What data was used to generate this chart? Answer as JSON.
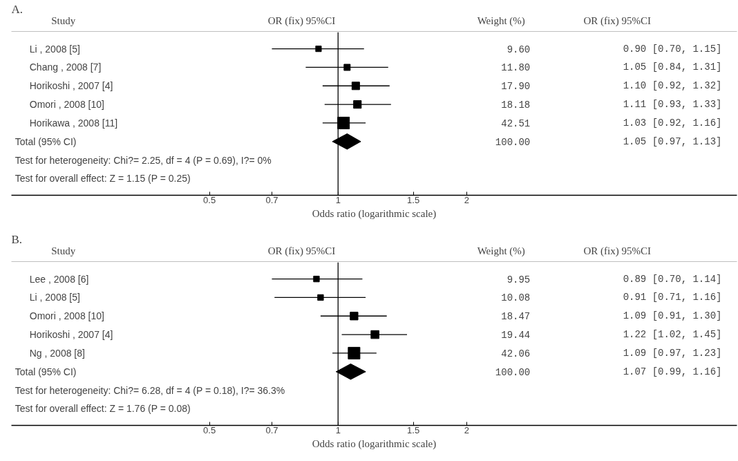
{
  "chart_data": [
    {
      "type": "scatter",
      "orientation": "horizontal",
      "title": "A.",
      "xlabel": "Odds ratio (logarithmic scale)",
      "log": "x",
      "grid": false,
      "tick_labels": "x",
      "categories": [
        "Li , 2008 [5]",
        "Chang , 2008 [7]",
        "Horikoshi , 2007 [4]",
        "Omori , 2008 [10]",
        "Horikawa , 2008 [11]",
        "Total (95% CI)"
      ],
      "xlim": [
        0.172,
        8.58
      ],
      "xticks": [
        0.5,
        0.7,
        1,
        1.5,
        2
      ],
      "ref_lines": [
        {
          "axis": "x",
          "value": 1,
          "color": "#000000"
        }
      ],
      "series": [
        {
          "marker": "square",
          "color": "#000000",
          "values": [
            0.9,
            1.05,
            1.1,
            1.11,
            1.03,
            null
          ],
          "errors": [
            [
              0.7,
              1.15
            ],
            [
              0.84,
              1.31
            ],
            [
              0.92,
              1.32
            ],
            [
              0.93,
              1.33
            ],
            [
              0.92,
              1.16
            ],
            null
          ],
          "sizes": [
            0.23,
            0.28,
            0.42,
            0.43,
            1,
            null
          ]
        },
        {
          "marker": "diamond",
          "color": "#000000",
          "values": [
            null,
            null,
            null,
            null,
            null,
            1.05
          ],
          "errors": [
            null,
            null,
            null,
            null,
            null,
            [
              0.97,
              1.13
            ]
          ]
        }
      ],
      "annotations": [
        "Study",
        "OR (fix) 95%CI",
        "Weight (%)",
        "OR (fix) 95%CI",
        "Test for heterogeneity: Chi?= 2.25, df = 4 (P = 0.69), I?= 0%",
        "Test for overall effect: Z = 1.15 (P = 0.25)",
        "9.60",
        "11.80",
        "17.90",
        "18.18",
        "42.51",
        "100.00",
        "0.90 [0.70, 1.15]",
        "1.05 [0.84, 1.31]",
        "1.10 [0.92, 1.32]",
        "1.11 [0.93, 1.33]",
        "1.03 [0.92, 1.16]",
        "1.05 [0.97, 1.13]"
      ]
    },
    {
      "type": "scatter",
      "orientation": "horizontal",
      "title": "B.",
      "xlabel": "Odds ratio (logarithmic scale)",
      "log": "x",
      "grid": false,
      "tick_labels": "x",
      "categories": [
        "Lee , 2008 [6]",
        "Li , 2008 [5]",
        "Omori , 2008 [10]",
        "Horikoshi , 2007 [4]",
        "Ng , 2008 [8]",
        "Total (95% CI)"
      ],
      "xlim": [
        0.172,
        8.58
      ],
      "xticks": [
        0.5,
        0.7,
        1,
        1.5,
        2
      ],
      "ref_lines": [
        {
          "axis": "x",
          "value": 1,
          "color": "#000000"
        }
      ],
      "series": [
        {
          "marker": "square",
          "color": "#000000",
          "values": [
            0.89,
            0.91,
            1.09,
            1.22,
            1.09,
            null
          ],
          "errors": [
            [
              0.7,
              1.14
            ],
            [
              0.71,
              1.16
            ],
            [
              0.91,
              1.3
            ],
            [
              1.02,
              1.45
            ],
            [
              0.97,
              1.23
            ],
            null
          ],
          "sizes": [
            0.24,
            0.24,
            0.44,
            0.46,
            1,
            null
          ]
        },
        {
          "marker": "diamond",
          "color": "#000000",
          "values": [
            null,
            null,
            null,
            null,
            null,
            1.07
          ],
          "errors": [
            null,
            null,
            null,
            null,
            null,
            [
              0.99,
              1.16
            ]
          ]
        }
      ],
      "annotations": [
        "Study",
        "OR (fix) 95%CI",
        "Weight (%)",
        "OR (fix) 95%CI",
        "Test for heterogeneity: Chi?= 6.28, df = 4 (P = 0.18), I?= 36.3%",
        "Test for overall effect: Z = 1.76 (P = 0.08)",
        "9.95",
        "10.08",
        "18.47",
        "19.44",
        "42.06",
        "100.00",
        "0.89 [0.70, 1.14]",
        "0.91 [0.71, 1.16]",
        "1.09 [0.91, 1.30]",
        "1.22 [1.02, 1.45]",
        "1.09 [0.97, 1.23]",
        "1.07 [0.99, 1.16]"
      ]
    }
  ]
}
